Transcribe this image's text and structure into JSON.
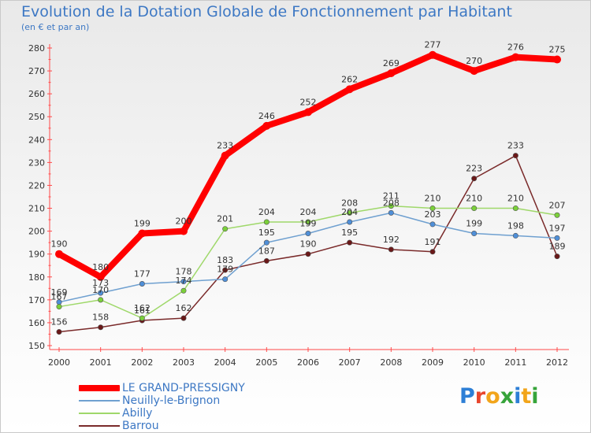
{
  "chart_data": {
    "type": "line",
    "title": "Evolution de la Dotation Globale de Fonctionnement par Habitant",
    "subtitle": "(en € et par an)",
    "xlabel": "",
    "ylabel": "",
    "x": [
      "2000",
      "2001",
      "2002",
      "2003",
      "2004",
      "2005",
      "2006",
      "2007",
      "2008",
      "2009",
      "2010",
      "2011",
      "2012"
    ],
    "ylim": [
      150,
      280
    ],
    "yticks": [
      "150",
      "160",
      "170",
      "180",
      "190",
      "200",
      "210",
      "220",
      "230",
      "240",
      "250",
      "260",
      "270",
      "280"
    ],
    "grid": false,
    "legend_position": "bottom-left",
    "series": [
      {
        "name": "LE GRAND-PRESSIGNY",
        "color": "#ff0000",
        "marker": "#ff0000",
        "values": [
          190,
          180,
          199,
          200,
          233,
          246,
          252,
          262,
          269,
          277,
          270,
          276,
          275
        ],
        "labels": [
          "190",
          "180",
          "199",
          "200",
          "233",
          "246",
          "252",
          "262",
          "269",
          "277",
          "270",
          "276",
          "275"
        ]
      },
      {
        "name": "Neuilly-le-Brignon",
        "color": "#6fa0d0",
        "marker": "#4f8fd8",
        "values": [
          169,
          173,
          177,
          178,
          179,
          195,
          199,
          204,
          208,
          203,
          199,
          198,
          197
        ],
        "labels": [
          "169",
          "173",
          "177",
          "178",
          "179",
          "195",
          "199",
          "204",
          "208",
          "203",
          "199",
          "198",
          "197"
        ]
      },
      {
        "name": "Abilly",
        "color": "#9fd86a",
        "marker": "#7bd03a",
        "values": [
          167,
          170,
          162,
          174,
          201,
          204,
          204,
          208,
          211,
          210,
          210,
          210,
          207
        ],
        "labels": [
          "167",
          "170",
          "162",
          "174",
          "201",
          "204",
          "204",
          "208",
          "211",
          "210",
          "210",
          "210",
          "207"
        ]
      },
      {
        "name": "Barrou",
        "color": "#7a2a2a",
        "marker": "#6a1818",
        "values": [
          156,
          158,
          161,
          162,
          183,
          187,
          190,
          195,
          192,
          191,
          223,
          233,
          189
        ],
        "labels": [
          "156",
          "158",
          "161",
          "162",
          "183",
          "187",
          "190",
          "195",
          "192",
          "191",
          "223",
          "233",
          "189"
        ]
      }
    ]
  },
  "logo": {
    "text": "Proxiti",
    "colors": [
      "#2d7fd6",
      "#e8462c",
      "#f2a51b",
      "#36a43a",
      "#2d7fd6",
      "#f2a51b",
      "#36a43a"
    ]
  }
}
